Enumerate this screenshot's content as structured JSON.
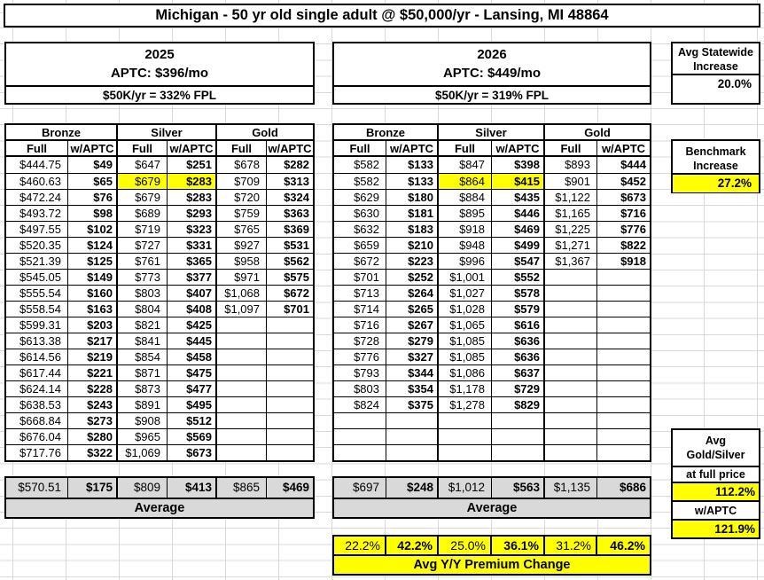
{
  "title": "Michigan - 50 yr old single adult @ $50,000/yr - Lansing, MI 48864",
  "y2025": {
    "year": "2025",
    "aptc": "APTC: $396/mo",
    "fpl": "$50K/yr = 332% FPL"
  },
  "y2026": {
    "year": "2026",
    "aptc": "APTC: $449/mo",
    "fpl": "$50K/yr = 319% FPL"
  },
  "statewide": {
    "line1": "Avg Statewide",
    "line2": "Increase",
    "value": "20.0%"
  },
  "benchmark": {
    "line1": "Benchmark",
    "line2": "Increase",
    "value": "27.2%"
  },
  "headers": {
    "groups": [
      "Bronze",
      "Silver",
      "Gold"
    ],
    "sub": [
      "Full",
      "w/APTC"
    ]
  },
  "chart_data": {
    "type": "table",
    "title": "Michigan - 50 yr old single adult @ $50,000/yr - Lansing, MI 48864",
    "columns": [
      "Bronze Full",
      "Bronze w/APTC",
      "Silver Full",
      "Silver w/APTC",
      "Gold Full",
      "Gold w/APTC"
    ]
  },
  "t2025": {
    "rows": [
      [
        "$444.75",
        "$49",
        "$647",
        "$251",
        "$678",
        "$282"
      ],
      [
        "$460.63",
        "$65",
        "$679",
        "$283",
        "$709",
        "$313"
      ],
      [
        "$472.24",
        "$76",
        "$679",
        "$283",
        "$720",
        "$324"
      ],
      [
        "$493.72",
        "$98",
        "$689",
        "$293",
        "$759",
        "$363"
      ],
      [
        "$497.55",
        "$102",
        "$719",
        "$323",
        "$765",
        "$369"
      ],
      [
        "$520.35",
        "$124",
        "$727",
        "$331",
        "$927",
        "$531"
      ],
      [
        "$521.39",
        "$125",
        "$761",
        "$365",
        "$958",
        "$562"
      ],
      [
        "$545.05",
        "$149",
        "$773",
        "$377",
        "$971",
        "$575"
      ],
      [
        "$555.54",
        "$160",
        "$803",
        "$407",
        "$1,068",
        "$672"
      ],
      [
        "$558.54",
        "$163",
        "$804",
        "$408",
        "$1,097",
        "$701"
      ],
      [
        "$599.31",
        "$203",
        "$821",
        "$425",
        "",
        ""
      ],
      [
        "$613.38",
        "$217",
        "$841",
        "$445",
        "",
        ""
      ],
      [
        "$614.56",
        "$219",
        "$854",
        "$458",
        "",
        ""
      ],
      [
        "$617.44",
        "$221",
        "$871",
        "$475",
        "",
        ""
      ],
      [
        "$624.14",
        "$228",
        "$873",
        "$477",
        "",
        ""
      ],
      [
        "$638.53",
        "$243",
        "$891",
        "$495",
        "",
        ""
      ],
      [
        "$668.84",
        "$273",
        "$908",
        "$512",
        "",
        ""
      ],
      [
        "$676.04",
        "$280",
        "$965",
        "$569",
        "",
        ""
      ],
      [
        "$717.76",
        "$322",
        "$1,069",
        "$673",
        "",
        ""
      ]
    ],
    "highlight_cells": [
      [
        1,
        2
      ],
      [
        1,
        3
      ]
    ],
    "average_row": [
      "$570.51",
      "$175",
      "$809",
      "$413",
      "$865",
      "$469"
    ],
    "average_label": "Average"
  },
  "t2026": {
    "rows": [
      [
        "$582",
        "$133",
        "$847",
        "$398",
        "$893",
        "$444"
      ],
      [
        "$582",
        "$133",
        "$864",
        "$415",
        "$901",
        "$452"
      ],
      [
        "$629",
        "$180",
        "$884",
        "$435",
        "$1,122",
        "$673"
      ],
      [
        "$630",
        "$181",
        "$895",
        "$446",
        "$1,165",
        "$716"
      ],
      [
        "$632",
        "$183",
        "$918",
        "$469",
        "$1,225",
        "$776"
      ],
      [
        "$659",
        "$210",
        "$948",
        "$499",
        "$1,271",
        "$822"
      ],
      [
        "$672",
        "$223",
        "$996",
        "$547",
        "$1,367",
        "$918"
      ],
      [
        "$701",
        "$252",
        "$1,001",
        "$552",
        "",
        ""
      ],
      [
        "$713",
        "$264",
        "$1,027",
        "$578",
        "",
        ""
      ],
      [
        "$714",
        "$265",
        "$1,028",
        "$579",
        "",
        ""
      ],
      [
        "$716",
        "$267",
        "$1,065",
        "$616",
        "",
        ""
      ],
      [
        "$728",
        "$279",
        "$1,085",
        "$636",
        "",
        ""
      ],
      [
        "$776",
        "$327",
        "$1,085",
        "$636",
        "",
        ""
      ],
      [
        "$793",
        "$344",
        "$1,086",
        "$637",
        "",
        ""
      ],
      [
        "$803",
        "$354",
        "$1,178",
        "$729",
        "",
        ""
      ],
      [
        "$824",
        "$375",
        "$1,278",
        "$829",
        "",
        ""
      ],
      [
        "",
        "",
        "",
        "",
        "",
        ""
      ],
      [
        "",
        "",
        "",
        "",
        "",
        ""
      ],
      [
        "",
        "",
        "",
        "",
        "",
        ""
      ]
    ],
    "highlight_cells": [
      [
        1,
        2
      ],
      [
        1,
        3
      ]
    ],
    "average_row": [
      "$697",
      "$248",
      "$1,012",
      "$563",
      "$1,135",
      "$686"
    ],
    "average_label": "Average"
  },
  "yy_change": {
    "values": [
      "22.2%",
      "42.2%",
      "25.0%",
      "36.1%",
      "31.2%",
      "46.2%"
    ],
    "label": "Avg Y/Y Premium Change"
  },
  "gold_silver": {
    "line1": "Avg",
    "line2": "Gold/Silver",
    "subtitle": "at full price",
    "full_value": "112.2%",
    "aptc_label": "w/APTC",
    "aptc_value": "121.9%"
  },
  "colors": {
    "highlight": "#ffff00",
    "average_bg": "#d9d9d9"
  }
}
